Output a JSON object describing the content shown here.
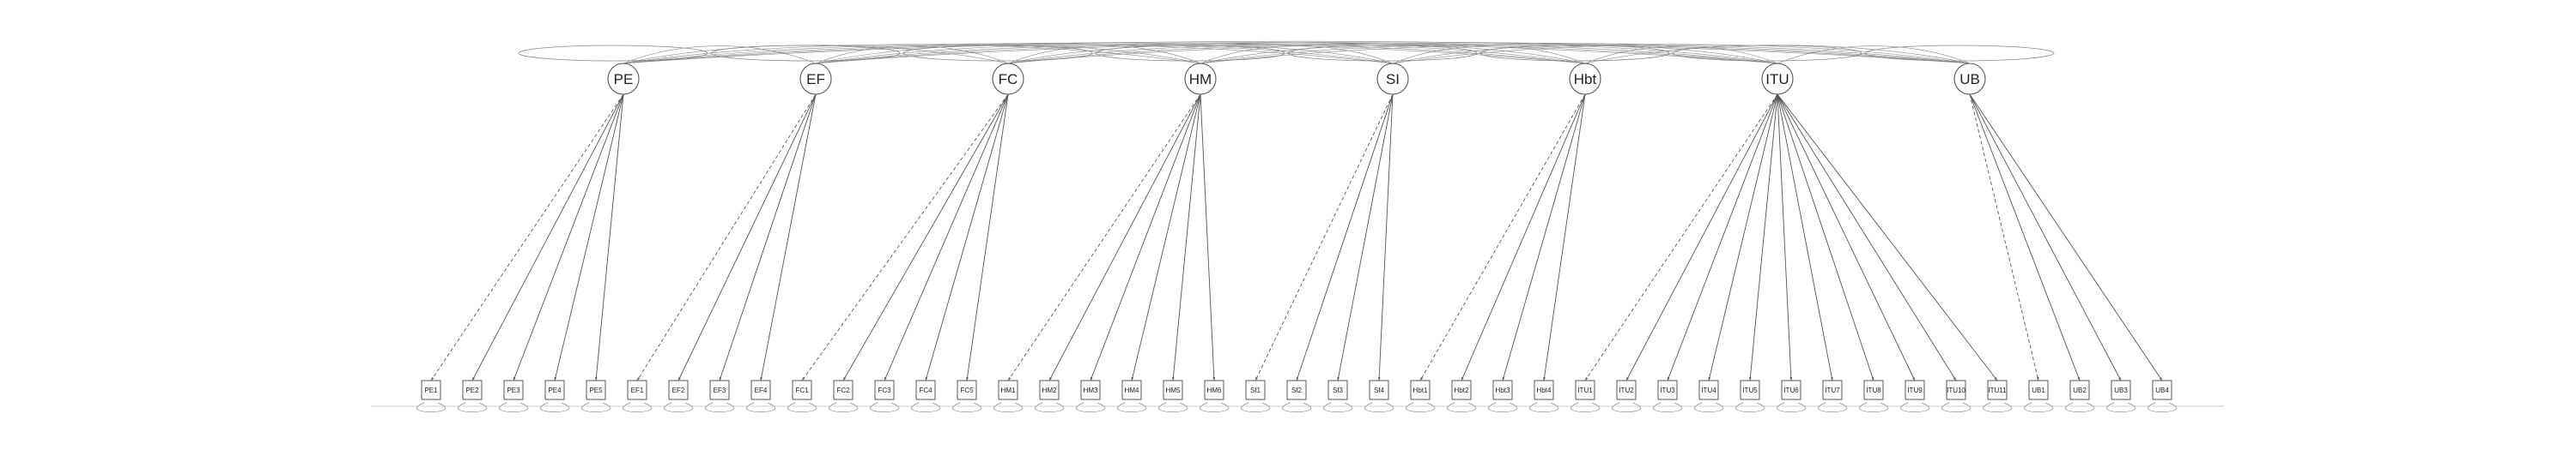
{
  "latents": [
    {
      "id": "PE",
      "label": "PE",
      "indicators": [
        "PE1",
        "PE2",
        "PE3",
        "PE4",
        "PE5"
      ]
    },
    {
      "id": "EF",
      "label": "EF",
      "indicators": [
        "EF1",
        "EF2",
        "EF3",
        "EF4"
      ]
    },
    {
      "id": "FC",
      "label": "FC",
      "indicators": [
        "FC1",
        "FC2",
        "FC3",
        "FC4",
        "FC5"
      ]
    },
    {
      "id": "HM",
      "label": "HM",
      "indicators": [
        "HM1",
        "HM2",
        "HM3",
        "HM4",
        "HM5",
        "HM6"
      ]
    },
    {
      "id": "SI",
      "label": "SI",
      "indicators": [
        "SI1",
        "SI2",
        "SI3",
        "SI4"
      ]
    },
    {
      "id": "Hbt",
      "label": "Hbt",
      "indicators": [
        "Hbt1",
        "Hbt2",
        "Hbt3",
        "Hbt4"
      ]
    },
    {
      "id": "ITU",
      "label": "ITU",
      "indicators": [
        "ITU1",
        "ITU2",
        "ITU3",
        "ITU4",
        "ITU5",
        "ITU6",
        "ITU7",
        "ITU8",
        "ITU9",
        "ITU10",
        "ITU11"
      ]
    },
    {
      "id": "UB",
      "label": "UB",
      "indicators": [
        "UB1",
        "UB2",
        "UB3",
        "UB4"
      ]
    }
  ],
  "colors": {
    "stroke": "#555555",
    "covariance": "#8a8a8a",
    "text": "#222222",
    "background": "#ffffff"
  },
  "line_styles": {
    "first_loading": "dashed",
    "other_loadings": "solid"
  }
}
